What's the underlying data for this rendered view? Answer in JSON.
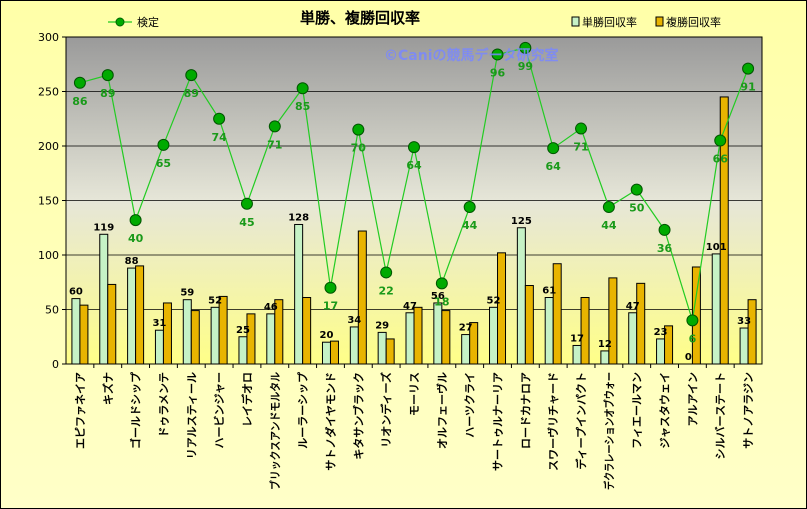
{
  "chart_data": {
    "type": "bar",
    "title": "単勝、複勝回収率",
    "watermark": "©Caniの競馬データ研究室",
    "ylim": [
      0,
      300
    ],
    "yticks": [
      0,
      50,
      100,
      150,
      200,
      250,
      300
    ],
    "grid": true,
    "legend_position": "top",
    "categories": [
      "エピファネイア",
      "キズナ",
      "ゴールドシップ",
      "ドゥラメンテ",
      "リアルスティール",
      "ハービンジャー",
      "レイデオロ",
      "ブリックスアンドモルタル",
      "ルーラーシップ",
      "サトノダイヤモンド",
      "キタサンブラック",
      "リオンディーズ",
      "モーリス",
      "オルフェーヴル",
      "ハーツクライ",
      "サートゥルナーリア",
      "ロードカナロア",
      "スワーヴリチャード",
      "ディープインパクト",
      "デクラレーションオブウォー",
      "フィエールマン",
      "ジャスタウェイ",
      "アルアイン",
      "シルバーステート",
      "サトノアラジン"
    ],
    "series": [
      {
        "name": "単勝回収率",
        "kind": "bar",
        "color": "#c6f2c6",
        "values": [
          60,
          119,
          88,
          31,
          59,
          52,
          25,
          46,
          128,
          20,
          34,
          29,
          47,
          56,
          27,
          52,
          125,
          61,
          17,
          12,
          47,
          23,
          0,
          101,
          33
        ]
      },
      {
        "name": "複勝回収率",
        "kind": "bar",
        "color": "#e8b400",
        "values": [
          54,
          73,
          90,
          56,
          49,
          62,
          46,
          59,
          61,
          21,
          122,
          23,
          52,
          49,
          38,
          102,
          72,
          92,
          61,
          79,
          74,
          35,
          89,
          245,
          59
        ]
      },
      {
        "name": "検定",
        "kind": "line",
        "color": "#22cc22",
        "values": [
          258,
          265,
          132,
          201,
          265,
          225,
          147,
          218,
          253,
          70,
          215,
          84,
          199,
          74,
          144,
          284,
          290,
          198,
          216,
          144,
          160,
          123,
          40,
          205,
          271
        ],
        "labels": [
          86,
          89,
          40,
          65,
          89,
          74,
          45,
          71,
          85,
          17,
          70,
          22,
          64,
          18,
          44,
          96,
          99,
          64,
          71,
          44,
          50,
          36,
          6,
          66,
          91
        ]
      }
    ]
  }
}
